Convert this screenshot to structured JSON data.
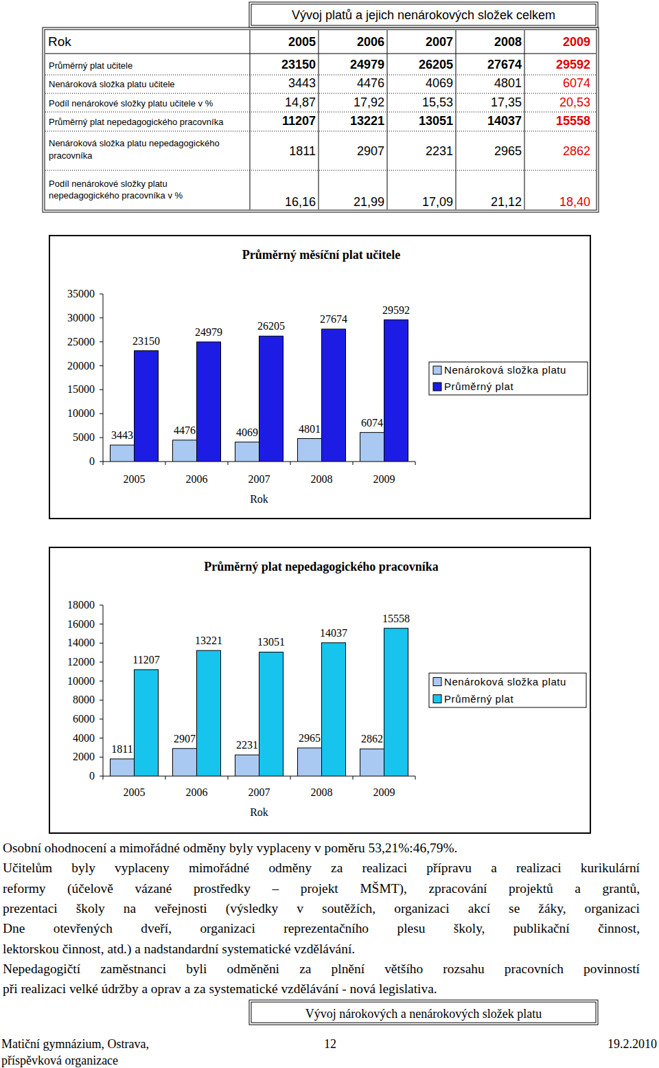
{
  "table": {
    "title": "Vývoj platů a jejich nenárokových složek celkem",
    "header": [
      "Rok",
      "2005",
      "2006",
      "2007",
      "2008",
      "2009"
    ],
    "rows": [
      {
        "label": [
          "Průměrný plat učitele"
        ],
        "values": [
          "23150",
          "24979",
          "26205",
          "27674",
          "29592"
        ]
      },
      {
        "label": [
          "Nenároková složka platu učitele"
        ],
        "values": [
          "3443",
          "4476",
          "4069",
          "4801",
          "6074"
        ]
      },
      {
        "label": [
          "Podíl nenárokové složky platu učitele v %"
        ],
        "values": [
          "14,87",
          "17,92",
          "15,53",
          "17,35",
          "20,53"
        ]
      },
      {
        "label": [
          "Průměrný plat nepedagogického pracovníka"
        ],
        "values": [
          "11207",
          "13221",
          "13051",
          "14037",
          "15558"
        ]
      },
      {
        "label": [
          "Nenároková složka platu nepedagogického",
          "pracovníka"
        ],
        "values": [
          "1811",
          "2907",
          "2231",
          "2965",
          "2862"
        ]
      },
      {
        "label": [
          "Podíl nenárokové složky platu",
          "nepedagogického pracovníka v %"
        ],
        "values": [
          "16,16",
          "21,99",
          "17,09",
          "21,12",
          "18,40"
        ]
      }
    ]
  },
  "chart_data": [
    {
      "type": "bar",
      "title": "Průměrný měsíční plat učitele",
      "x_label": "Rok",
      "categories": [
        "2005",
        "2006",
        "2007",
        "2008",
        "2009"
      ],
      "series": [
        {
          "name": "Nenároková složka platu",
          "color": "#a9c9f2",
          "values": [
            3443,
            4476,
            4069,
            4801,
            6074
          ]
        },
        {
          "name": "Průměrný plat",
          "color": "#1c1ce4",
          "values": [
            23150,
            24979,
            26205,
            27674,
            29592
          ]
        }
      ],
      "ylim": [
        0,
        35000
      ],
      "yticks": [
        0,
        5000,
        10000,
        15000,
        20000,
        25000,
        30000,
        35000
      ],
      "data_labels": true,
      "legend": "right"
    },
    {
      "type": "bar",
      "title": "Průměrný plat nepedagogického pracovníka",
      "x_label": "Rok",
      "categories": [
        "2005",
        "2006",
        "2007",
        "2008",
        "2009"
      ],
      "series": [
        {
          "name": "Nenároková složka platu",
          "color": "#a9c9f2",
          "values": [
            1811,
            2907,
            2231,
            2965,
            2862
          ]
        },
        {
          "name": "Průměrný plat",
          "color": "#16c4ee",
          "values": [
            11207,
            13221,
            13051,
            14037,
            15558
          ]
        }
      ],
      "ylim": [
        0,
        18000
      ],
      "yticks": [
        0,
        2000,
        4000,
        6000,
        8000,
        10000,
        12000,
        14000,
        16000,
        18000
      ],
      "data_labels": true,
      "legend": "right"
    }
  ],
  "paragraphs": [
    {
      "lines": [
        "Osobní ohodnocení a mimořádné odměny byly vyplaceny v poměru 53,21%:46,79%."
      ]
    },
    {
      "lines": [
        "Učitelům byly vyplaceny mimořádné odměny za realizaci přípravu a realizaci kurikulární",
        "reformy (účelově vázané prostředky – projekt MŠMT), zpracování projektů a grantů,",
        "prezentaci školy na veřejnosti (výsledky v soutěžích, organizaci akcí se žáky, organizaci",
        "Dne otevřených dveří, organizaci reprezentačního plesu školy, publikační činnost,",
        "lektorskou činnost, atd.) a nadstandardní systematické vzdělávání."
      ]
    },
    {
      "lines": [
        "Nepedagogičtí zaměstnanci byli odměněni za plnění většího rozsahu pracovních povinností",
        "při realizaci velké údržby a oprav a za systematické vzdělávání - nová legislativa."
      ]
    }
  ],
  "section_heading": "Vývoj nárokových a nenárokových složek platu",
  "footer": {
    "left": [
      "Matiční gymnázium, Ostrava,",
      "příspěvková organizace"
    ],
    "page": "12",
    "date": "19.2.2010"
  }
}
